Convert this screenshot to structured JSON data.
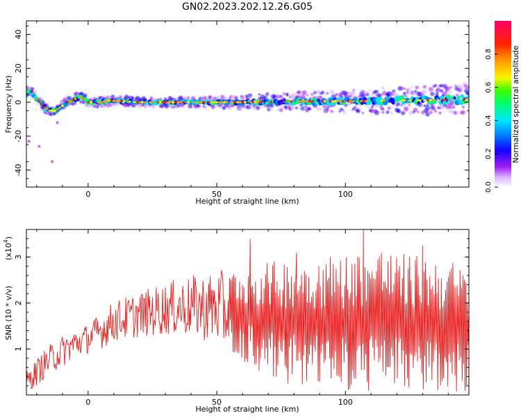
{
  "title": "GN02.2023.202.12.26.G05",
  "chart_data": [
    {
      "type": "heatmap",
      "xlabel": "Height of straight line (km)",
      "ylabel": "Frequency (Hz)",
      "xlim": [
        -24,
        148
      ],
      "ylim": [
        -50,
        48
      ],
      "x_ticks": [
        0,
        50,
        100
      ],
      "y_ticks": [
        40,
        20,
        0,
        -20,
        -40
      ],
      "colorbar": {
        "label": "Normalized spectral amplitude",
        "range": [
          0,
          1
        ],
        "ticks": [
          "0.0",
          "0.2",
          "0.4",
          "0.6",
          "0.8"
        ],
        "colors": [
          "#ffffff",
          "#d9b3ff",
          "#a020f0",
          "#1400ff",
          "#0088ff",
          "#00e5ff",
          "#00ff70",
          "#39ff00",
          "#fff200",
          "#ff9a00",
          "#ff2200",
          "#ff0066"
        ]
      },
      "ridge": {
        "description_points": [
          {
            "x": -22,
            "y": 6
          },
          {
            "x": -20,
            "y": 2
          },
          {
            "x": -17,
            "y": -3
          },
          {
            "x": -15,
            "y": -5
          },
          {
            "x": -13,
            "y": -5
          },
          {
            "x": -11,
            "y": -3
          },
          {
            "x": -8,
            "y": 0
          },
          {
            "x": -5,
            "y": 2
          },
          {
            "x": -3,
            "y": 3
          },
          {
            "x": -1,
            "y": 1
          },
          {
            "x": 0,
            "y": 0
          },
          {
            "x": 5,
            "y": 0
          },
          {
            "x": 8,
            "y": 1
          },
          {
            "x": 20,
            "y": 0
          },
          {
            "x": 60,
            "y": 0
          },
          {
            "x": 80,
            "y": 0.5
          },
          {
            "x": 100,
            "y": 0.5
          },
          {
            "x": 120,
            "y": 1
          },
          {
            "x": 148,
            "y": 1.5
          }
        ]
      },
      "outliers": [
        {
          "x": -23,
          "y": -23
        },
        {
          "x": -19,
          "y": -26
        },
        {
          "x": -14,
          "y": -35
        },
        {
          "x": -12,
          "y": -12
        }
      ]
    },
    {
      "type": "line",
      "xlabel": "Height of straight line (km)",
      "ylabel": "SNR (10 * v/v)",
      "multiplier_label": "(x10",
      "multiplier_exp": "4",
      "multiplier_close": ")",
      "xlim": [
        -24,
        148
      ],
      "ylim": [
        0,
        3.6
      ],
      "x_ticks": [
        0,
        50,
        100
      ],
      "y_ticks": [
        1,
        2,
        3
      ],
      "color": "#ee1c1c",
      "envelope": {
        "x": [
          -24,
          -20,
          -15,
          -10,
          -5,
          0,
          5,
          10,
          20,
          30,
          40,
          50,
          60,
          70,
          80,
          90,
          100,
          110,
          120,
          130,
          140,
          148
        ],
        "low": [
          0.05,
          0.2,
          0.45,
          0.6,
          0.8,
          0.9,
          1.0,
          1.15,
          1.25,
          1.3,
          1.25,
          1.1,
          0.7,
          0.4,
          0.2,
          0.1,
          0.05,
          0.05,
          0.05,
          0.05,
          0.05,
          0.05
        ],
        "high": [
          0.5,
          0.8,
          1.1,
          1.3,
          1.45,
          1.55,
          1.8,
          2.05,
          2.25,
          2.45,
          2.6,
          2.7,
          2.8,
          2.9,
          3.0,
          3.05,
          3.1,
          3.2,
          3.1,
          3.05,
          3.0,
          2.7
        ]
      },
      "peaks": [
        {
          "x": 63,
          "y": 3.4
        },
        {
          "x": 107,
          "y": 3.6
        },
        {
          "x": 81,
          "y": 3.1
        },
        {
          "x": 114,
          "y": 3.1
        },
        {
          "x": 130,
          "y": 3.25
        }
      ]
    }
  ]
}
